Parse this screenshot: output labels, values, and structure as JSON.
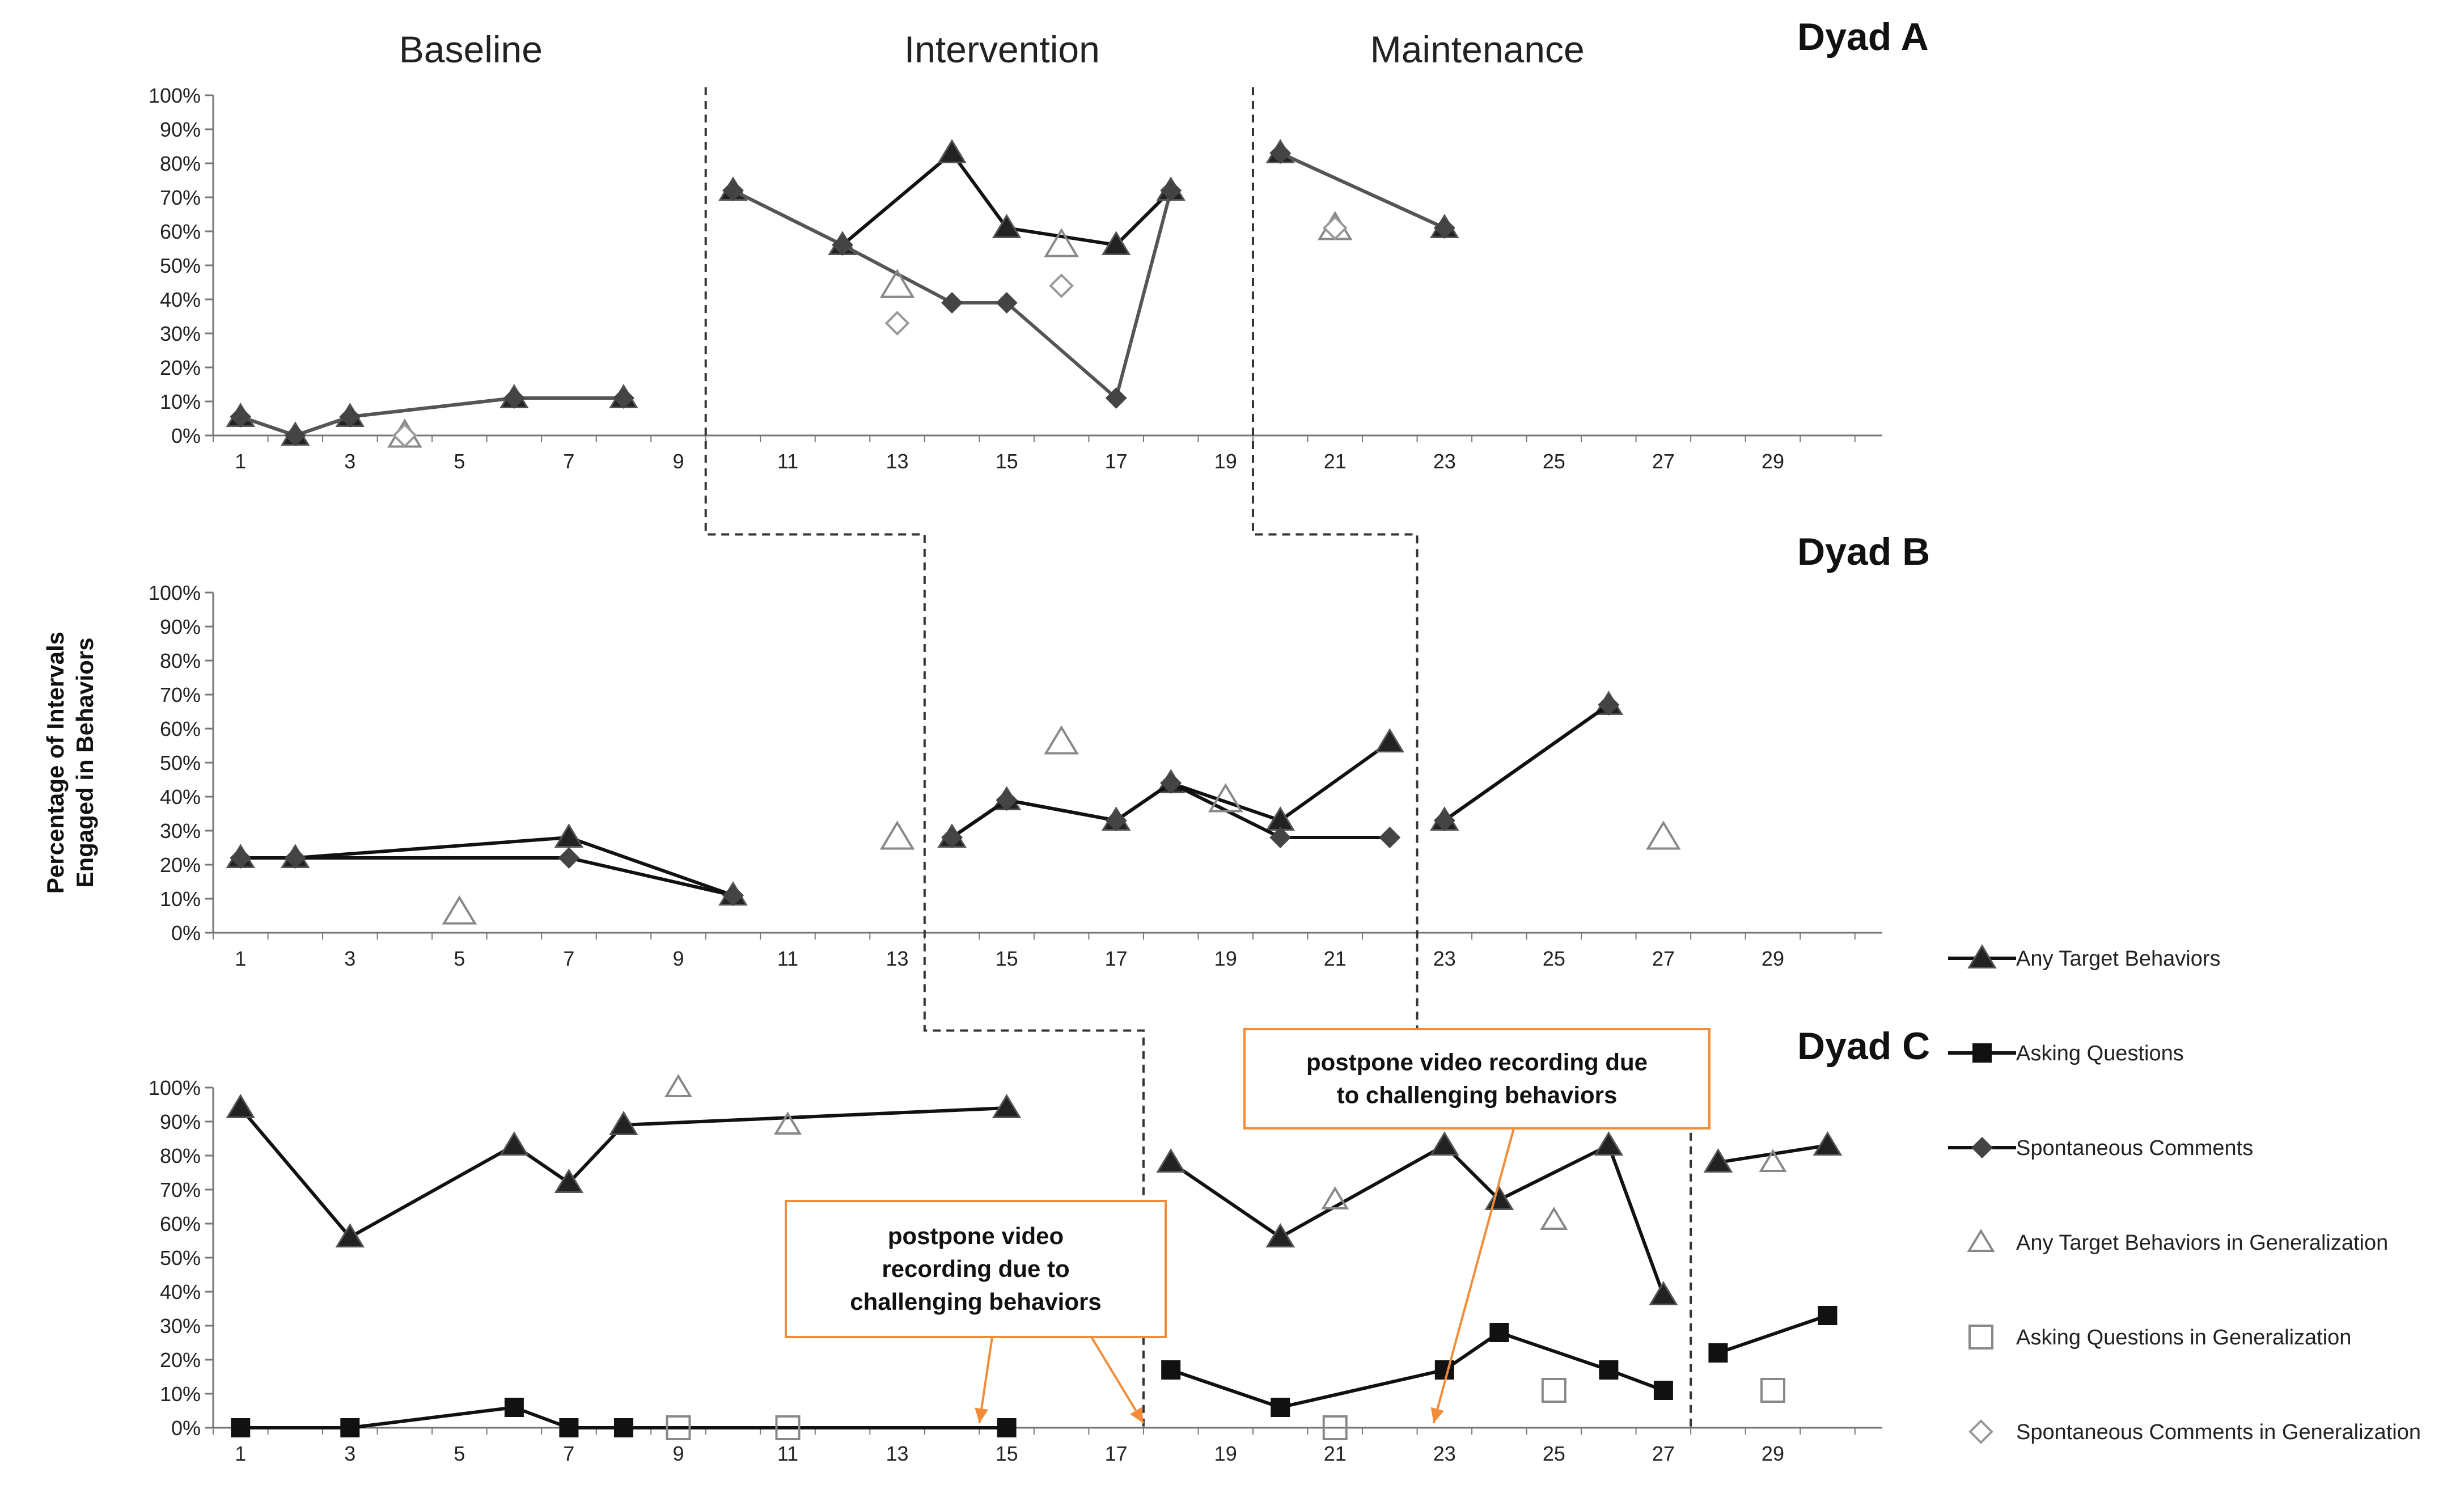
{
  "chart_data": {
    "type": "line",
    "phase_labels": [
      "Baseline",
      "Intervention",
      "Maintenance"
    ],
    "y_label_lines": [
      "Percentage of Intervals",
      "Engaged in Behaviors"
    ],
    "x_ticks": [
      1,
      3,
      5,
      7,
      9,
      11,
      13,
      15,
      17,
      19,
      21,
      23,
      25,
      27,
      29
    ],
    "y_ticks": [
      "0%",
      "10%",
      "20%",
      "30%",
      "40%",
      "50%",
      "60%",
      "70%",
      "80%",
      "90%",
      "100%"
    ],
    "xlim": [
      0.5,
      31
    ],
    "ylim": [
      0,
      100
    ],
    "legend": [
      {
        "name": "Any Target Behaviors",
        "marker": "triangle-filled",
        "line": true
      },
      {
        "name": "Asking Questions",
        "marker": "square-filled",
        "line": true
      },
      {
        "name": "Spontaneous Comments",
        "marker": "diamond-filled",
        "line": true
      },
      {
        "name": "Any Target Behaviors in Generalization",
        "marker": "triangle-open",
        "line": false
      },
      {
        "name": "Asking Questions in Generalization",
        "marker": "square-open",
        "line": false
      },
      {
        "name": "Spontaneous Comments in Generalization",
        "marker": "diamond-open",
        "line": false
      }
    ],
    "panels": [
      {
        "name": "Dyad A",
        "phase_change_x": [
          9.5,
          19.5
        ],
        "series": [
          {
            "name": "Any Target Behaviors",
            "marker": "triangle-filled",
            "segments": [
              [
                [
                  1,
                  5.5
                ],
                [
                  2,
                  0
                ],
                [
                  3,
                  5.5
                ],
                [
                  6,
                  11
                ],
                [
                  8,
                  11
                ]
              ],
              [
                [
                  10,
                  72
                ],
                [
                  12,
                  56
                ],
                [
                  14,
                  83
                ],
                [
                  15,
                  61
                ],
                [
                  17,
                  56
                ],
                [
                  18,
                  72
                ]
              ],
              [
                [
                  20,
                  83
                ],
                [
                  23,
                  61
                ]
              ]
            ]
          },
          {
            "name": "Spontaneous Comments",
            "marker": "diamond-filled",
            "segments": [
              [
                [
                  1,
                  5.5
                ],
                [
                  2,
                  0
                ],
                [
                  3,
                  5.5
                ],
                [
                  6,
                  11
                ],
                [
                  8,
                  11
                ]
              ],
              [
                [
                  10,
                  72
                ],
                [
                  12,
                  56
                ],
                [
                  14,
                  39
                ],
                [
                  15,
                  39
                ],
                [
                  17,
                  11
                ],
                [
                  18,
                  72
                ]
              ],
              [
                [
                  20,
                  83
                ],
                [
                  23,
                  61
                ]
              ]
            ]
          },
          {
            "name": "Any Target Behaviors in Generalization",
            "marker": "triangle-open",
            "points": [
              [
                4,
                0
              ],
              [
                13,
                44
              ],
              [
                16,
                56
              ],
              [
                21,
                61
              ]
            ]
          },
          {
            "name": "Spontaneous Comments in Generalization",
            "marker": "diamond-open",
            "points": [
              [
                4,
                0
              ],
              [
                13,
                33
              ],
              [
                16,
                44
              ],
              [
                21,
                61
              ]
            ]
          }
        ]
      },
      {
        "name": "Dyad B",
        "phase_change_x": [
          13.5,
          22.5
        ],
        "series": [
          {
            "name": "Any Target Behaviors",
            "marker": "triangle-filled",
            "segments": [
              [
                [
                  1,
                  22
                ],
                [
                  2,
                  22
                ],
                [
                  7,
                  28
                ],
                [
                  10,
                  11
                ]
              ],
              [
                [
                  14,
                  28
                ],
                [
                  15,
                  39
                ],
                [
                  17,
                  33
                ],
                [
                  18,
                  44
                ],
                [
                  20,
                  33
                ],
                [
                  22,
                  56
                ]
              ],
              [
                [
                  23,
                  33
                ],
                [
                  26,
                  67
                ]
              ]
            ]
          },
          {
            "name": "Spontaneous Comments",
            "marker": "diamond-filled",
            "segments": [
              [
                [
                  1,
                  22
                ],
                [
                  2,
                  22
                ],
                [
                  7,
                  22
                ],
                [
                  10,
                  11
                ]
              ],
              [
                [
                  14,
                  28
                ],
                [
                  15,
                  39
                ],
                [
                  17,
                  33
                ],
                [
                  18,
                  44
                ],
                [
                  20,
                  28
                ],
                [
                  22,
                  28
                ]
              ],
              [
                [
                  23,
                  33
                ],
                [
                  26,
                  67
                ]
              ]
            ]
          },
          {
            "name": "Any Target Behaviors in Generalization",
            "marker": "triangle-open",
            "points": [
              [
                5,
                6
              ],
              [
                13,
                28
              ],
              [
                16,
                56
              ],
              [
                19,
                39
              ],
              [
                27,
                28
              ]
            ]
          }
        ]
      },
      {
        "name": "Dyad C",
        "phase_change_x": [
          17.5,
          27.5
        ],
        "series": [
          {
            "name": "Any Target Behaviors",
            "marker": "triangle-filled",
            "segments": [
              [
                [
                  1,
                  94
                ],
                [
                  3,
                  56
                ],
                [
                  6,
                  83
                ],
                [
                  7,
                  72
                ],
                [
                  8,
                  89
                ],
                [
                  15,
                  94
                ]
              ],
              [
                [
                  18,
                  78
                ],
                [
                  20,
                  56
                ],
                [
                  23,
                  83
                ],
                [
                  24,
                  67
                ],
                [
                  26,
                  83
                ],
                [
                  27,
                  39
                ]
              ],
              [
                [
                  28,
                  78
                ],
                [
                  30,
                  83
                ]
              ]
            ]
          },
          {
            "name": "Asking Questions",
            "marker": "square-filled",
            "segments": [
              [
                [
                  1,
                  0
                ],
                [
                  3,
                  0
                ],
                [
                  6,
                  6
                ],
                [
                  7,
                  0
                ],
                [
                  8,
                  0
                ],
                [
                  15,
                  0
                ]
              ],
              [
                [
                  18,
                  17
                ],
                [
                  20,
                  6
                ],
                [
                  23,
                  17
                ],
                [
                  24,
                  28
                ],
                [
                  26,
                  17
                ],
                [
                  27,
                  11
                ]
              ],
              [
                [
                  28,
                  22
                ],
                [
                  30,
                  33
                ]
              ]
            ]
          },
          {
            "name": "Any Target Behaviors in Generalization",
            "marker": "triangle-open",
            "points": [
              [
                9,
                100
              ],
              [
                11,
                89
              ],
              [
                21,
                67
              ],
              [
                25,
                61
              ],
              [
                29,
                78
              ]
            ]
          },
          {
            "name": "Asking Questions in Generalization",
            "marker": "square-open",
            "points": [
              [
                9,
                0
              ],
              [
                11,
                0
              ],
              [
                21,
                0
              ],
              [
                25,
                11
              ],
              [
                29,
                11
              ]
            ]
          }
        ],
        "callouts": [
          {
            "text_lines": [
              "postpone video",
              "recording  due to",
              "challenging  behaviors"
            ],
            "arrows_to_x": [
              14.5,
              17.5
            ]
          },
          {
            "text_lines": [
              "postpone video recording due",
              "to challenging behaviors"
            ],
            "arrows_to_x": [
              22.8
            ]
          }
        ]
      }
    ]
  }
}
